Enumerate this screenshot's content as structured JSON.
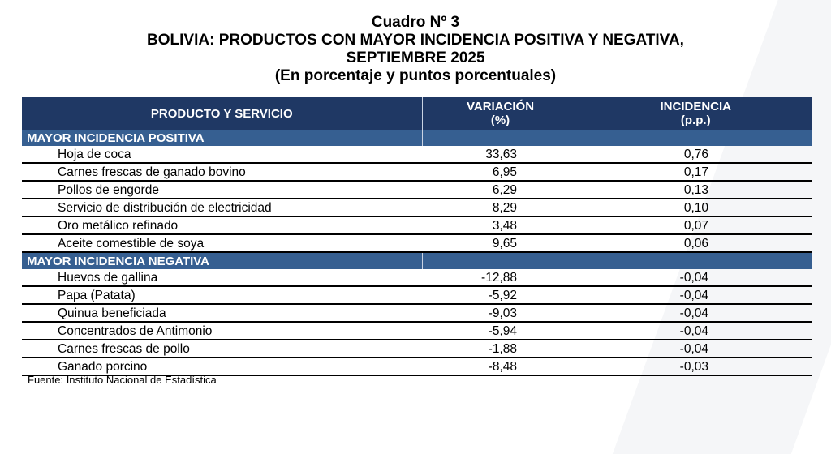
{
  "title": {
    "line1": "Cuadro Nº 3",
    "line2": "BOLIVIA: PRODUCTOS CON MAYOR INCIDENCIA POSITIVA Y NEGATIVA,",
    "line3": "SEPTIEMBRE 2025",
    "line4": "(En porcentaje y puntos porcentuales)"
  },
  "headers": {
    "product": "PRODUCTO Y SERVICIO",
    "var1": "VARIACIÓN",
    "var2": "(%)",
    "inc1": "INCIDENCIA",
    "inc2": "(p.p.)"
  },
  "positive": {
    "label": "MAYOR INCIDENCIA POSITIVA",
    "rows": [
      {
        "name": "Hoja de coca",
        "var": "33,63",
        "inc": "0,76"
      },
      {
        "name": "Carnes frescas de ganado bovino",
        "var": "6,95",
        "inc": "0,17"
      },
      {
        "name": "Pollos de engorde",
        "var": "6,29",
        "inc": "0,13"
      },
      {
        "name": "Servicio de distribución de electricidad",
        "var": "8,29",
        "inc": "0,10"
      },
      {
        "name": "Oro metálico refinado",
        "var": "3,48",
        "inc": "0,07"
      },
      {
        "name": "Aceite comestible de soya",
        "var": "9,65",
        "inc": "0,06"
      }
    ]
  },
  "negative": {
    "label": "MAYOR INCIDENCIA NEGATIVA",
    "rows": [
      {
        "name": "Huevos de gallina",
        "var": "-12,88",
        "inc": "-0,04"
      },
      {
        "name": "Papa (Patata)",
        "var": "-5,92",
        "inc": "-0,04"
      },
      {
        "name": "Quinua beneficiada",
        "var": "-9,03",
        "inc": "-0,04"
      },
      {
        "name": "Concentrados de Antimonio",
        "var": "-5,94",
        "inc": "-0,04"
      },
      {
        "name": "Carnes frescas de pollo",
        "var": "-1,88",
        "inc": "-0,04"
      },
      {
        "name": "Ganado porcino",
        "var": "-8,48",
        "inc": "-0,03"
      }
    ]
  },
  "footer": "Fuente: Instituto Nacional de Estadística"
}
